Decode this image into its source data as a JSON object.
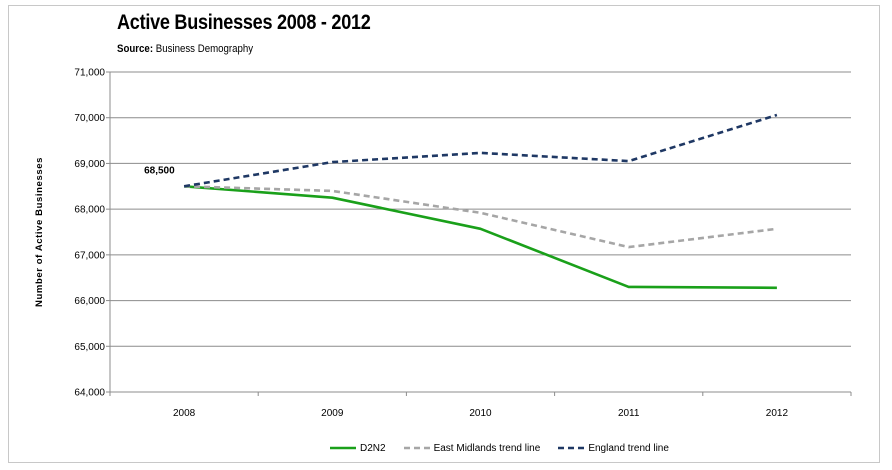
{
  "title": "Active Businesses 2008 - 2012",
  "subtitle": {
    "prefix": "Source:",
    "text": " Business Demography"
  },
  "chart_data": {
    "type": "line",
    "title": "Active Businesses 2008 - 2012",
    "subtitle": "Source: Business Demography",
    "xlabel": "",
    "ylabel": "Number of Active Businesses",
    "x": [
      "2008",
      "2009",
      "2010",
      "2011",
      "2012"
    ],
    "ylim": [
      64000,
      71000
    ],
    "yticks": [
      64000,
      65000,
      66000,
      67000,
      68000,
      69000,
      70000,
      71000
    ],
    "ytick_labels": [
      "64,000",
      "65,000",
      "66,000",
      "67,000",
      "68,000",
      "69,000",
      "70,000",
      "71,000"
    ],
    "grid": "horizontal",
    "legend": "bottom",
    "series": [
      {
        "name": "D2N2",
        "values": [
          68500,
          68250,
          67570,
          66300,
          66280
        ],
        "color": "#1aa01a",
        "style": "solid"
      },
      {
        "name": "East Midlands trend line",
        "values": [
          68500,
          68400,
          67920,
          67170,
          67570
        ],
        "color": "#a6a6a6",
        "style": "dashed"
      },
      {
        "name": "England trend line",
        "values": [
          68500,
          69030,
          69230,
          69050,
          70060
        ],
        "color": "#1f3864",
        "style": "dashed"
      }
    ],
    "annotations": [
      {
        "text": "68,500",
        "x": "2008",
        "y": 68500
      }
    ]
  }
}
